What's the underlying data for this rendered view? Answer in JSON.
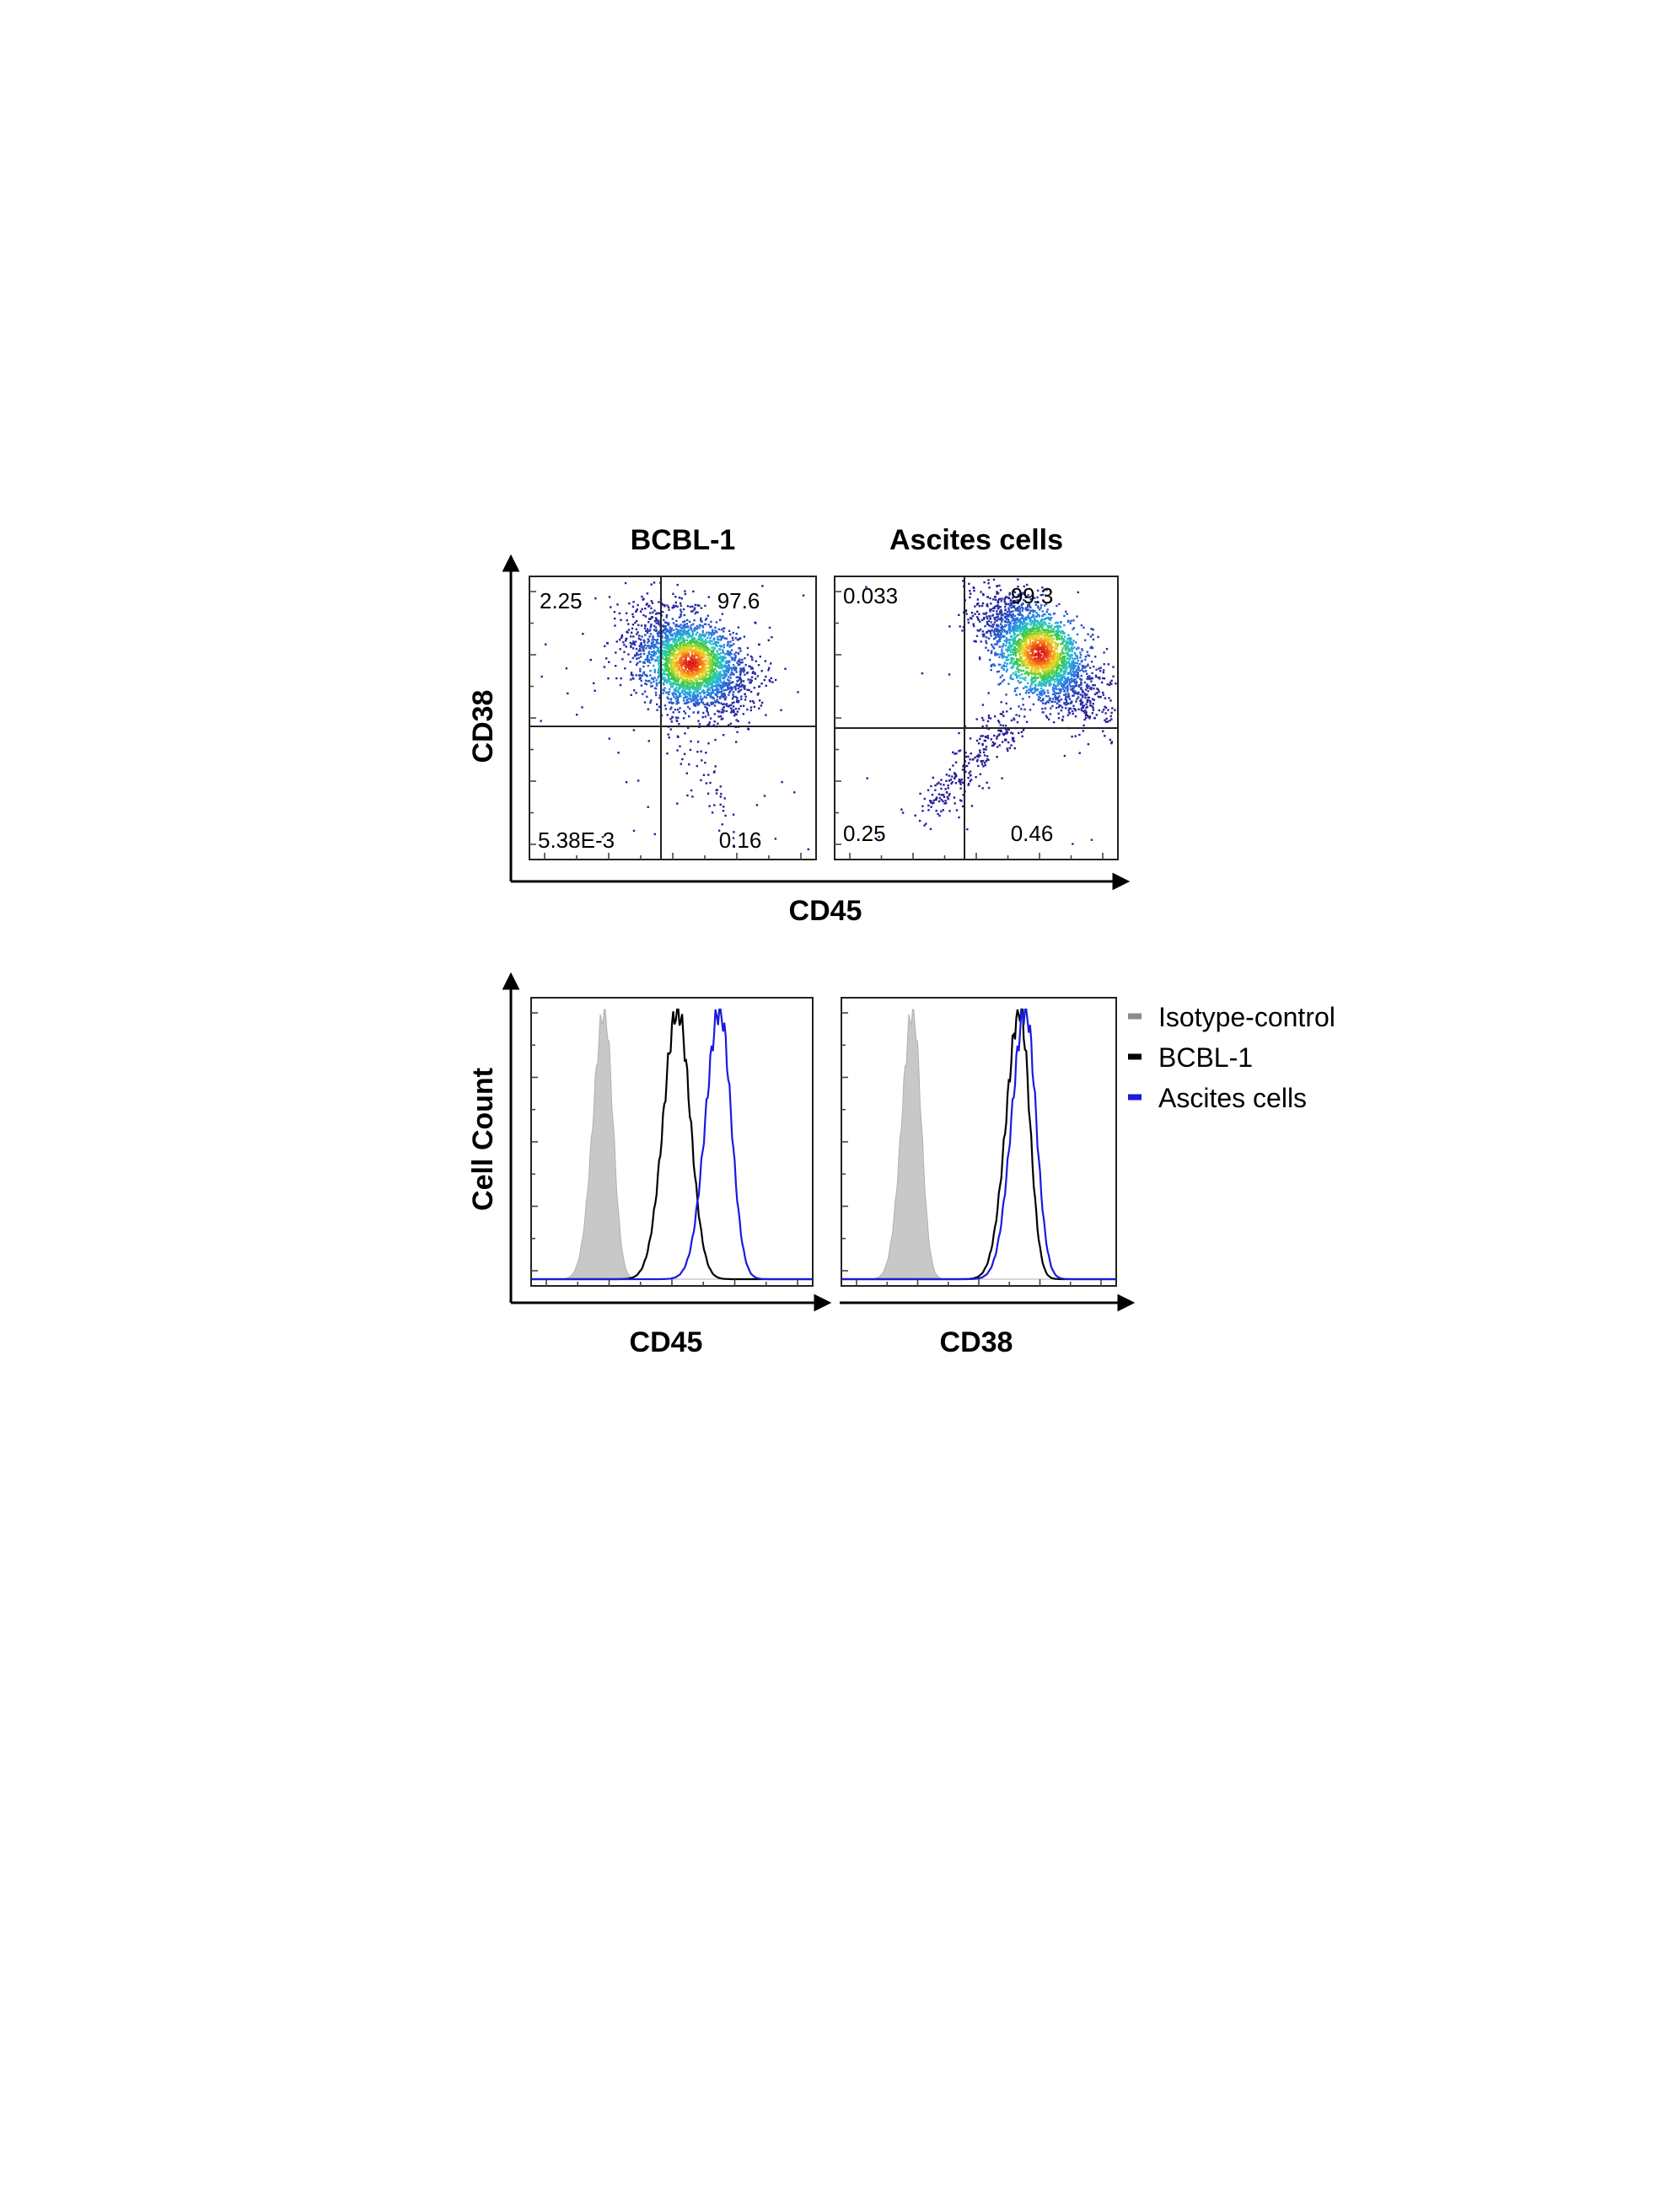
{
  "chart_data": [
    {
      "type": "scatter",
      "panel": "dot-plot",
      "xlabel": "CD45",
      "ylabel": "CD38",
      "panels": [
        {
          "title": "BCBL-1",
          "quadrants": {
            "upper_left": "2.25",
            "upper_right": "97.6",
            "lower_left": "5.38E-3",
            "lower_right": "0.16"
          }
        },
        {
          "title": "Ascites cells",
          "quadrants": {
            "upper_left": "0.033",
            "upper_right": "99.3",
            "lower_left": "0.25",
            "lower_right": "0.46"
          }
        }
      ]
    },
    {
      "type": "area",
      "panel": "histogram",
      "ylabel": "Cell Count",
      "legend": {
        "placement": "right",
        "entries": [
          {
            "name": "Isotype-control",
            "color": "#8c8c8c"
          },
          {
            "name": "BCBL-1",
            "color": "#000000"
          },
          {
            "name": "Ascites cells",
            "color": "#1a1adf"
          }
        ]
      },
      "panels": [
        {
          "xlabel": "CD45",
          "series": [
            {
              "name": "Isotype-control",
              "peak": 0.26,
              "sd_left": 0.04,
              "sd_right": 0.03,
              "filled": true
            },
            {
              "name": "BCBL-1",
              "peak": 0.52,
              "sd_left": 0.05,
              "sd_right": 0.045,
              "filled": false
            },
            {
              "name": "Ascites cells",
              "peak": 0.67,
              "sd_left": 0.05,
              "sd_right": 0.04,
              "filled": false
            }
          ]
        },
        {
          "xlabel": "CD38",
          "series": [
            {
              "name": "Isotype-control",
              "peak": 0.26,
              "sd_left": 0.04,
              "sd_right": 0.03,
              "filled": true
            },
            {
              "name": "BCBL-1",
              "peak": 0.65,
              "sd_left": 0.05,
              "sd_right": 0.035,
              "filled": false
            },
            {
              "name": "Ascites cells",
              "peak": 0.67,
              "sd_left": 0.05,
              "sd_right": 0.038,
              "filled": false
            }
          ]
        }
      ]
    }
  ]
}
